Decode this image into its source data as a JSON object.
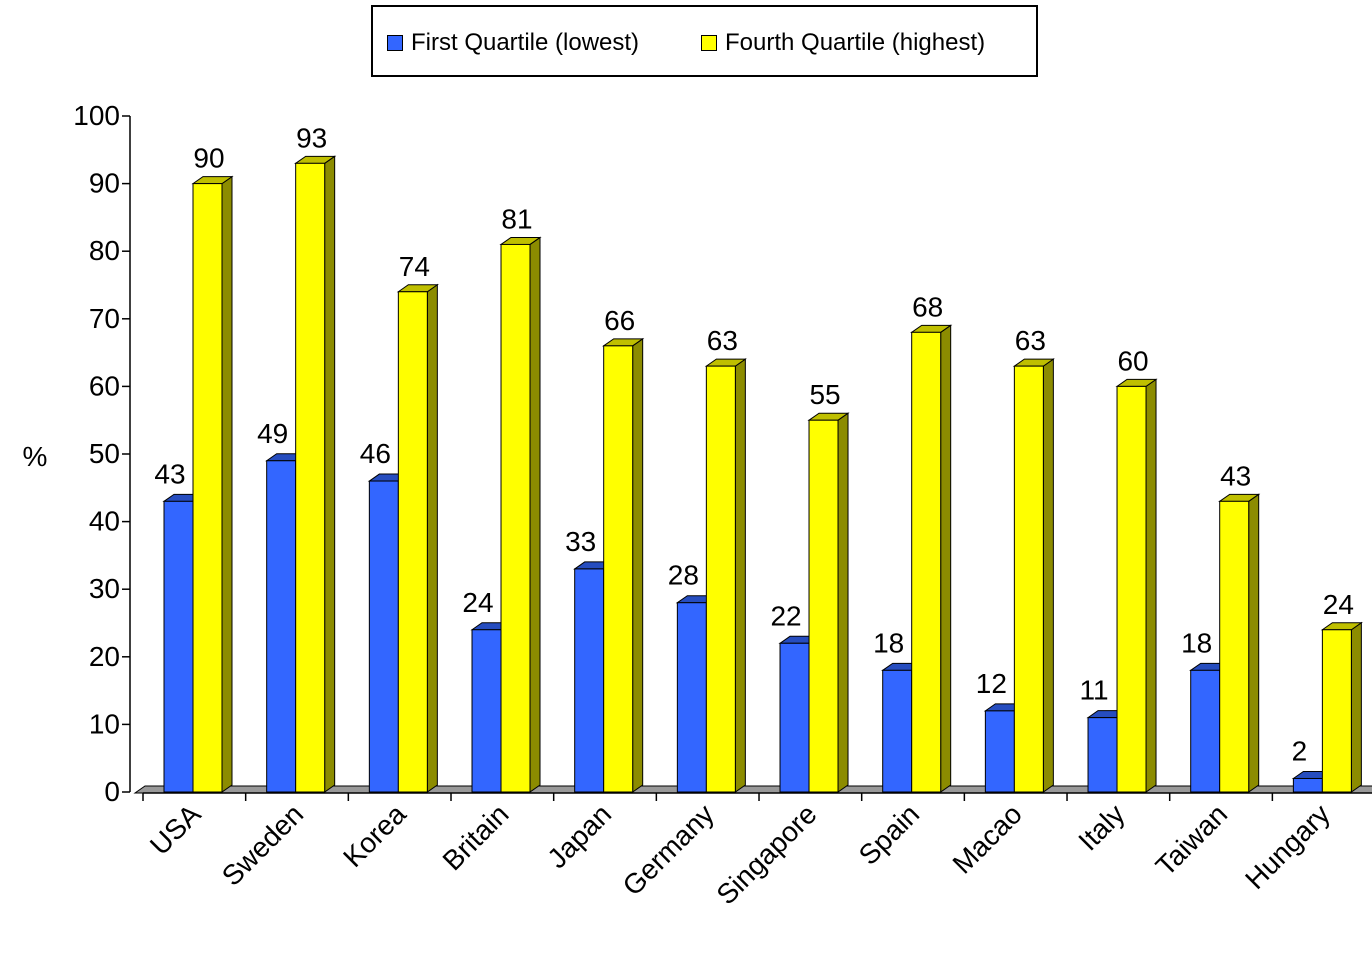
{
  "legend": {
    "items": [
      {
        "label": "First Quartile (lowest)",
        "color": "#3366ff"
      },
      {
        "label": "Fourth Quartile (highest)",
        "color": "#ffff00"
      }
    ]
  },
  "chart_data": {
    "type": "bar",
    "categories": [
      "USA",
      "Sweden",
      "Korea",
      "Britain",
      "Japan",
      "Germany",
      "Singapore",
      "Spain",
      "Macao",
      "Italy",
      "Taiwan",
      "Hungary"
    ],
    "series": [
      {
        "name": "First Quartile (lowest)",
        "color": "#3366ff",
        "values": [
          43,
          49,
          46,
          24,
          33,
          28,
          22,
          18,
          12,
          11,
          18,
          2
        ]
      },
      {
        "name": "Fourth Quartile (highest)",
        "color": "#ffff00",
        "values": [
          90,
          93,
          74,
          81,
          66,
          63,
          55,
          68,
          63,
          60,
          43,
          24
        ]
      }
    ],
    "ylabel": "%",
    "ylim": [
      0,
      100
    ],
    "yticks": [
      0,
      10,
      20,
      30,
      40,
      50,
      60,
      70,
      80,
      90,
      100
    ],
    "grid": false,
    "legend_position": "top",
    "style": "3d-column"
  }
}
